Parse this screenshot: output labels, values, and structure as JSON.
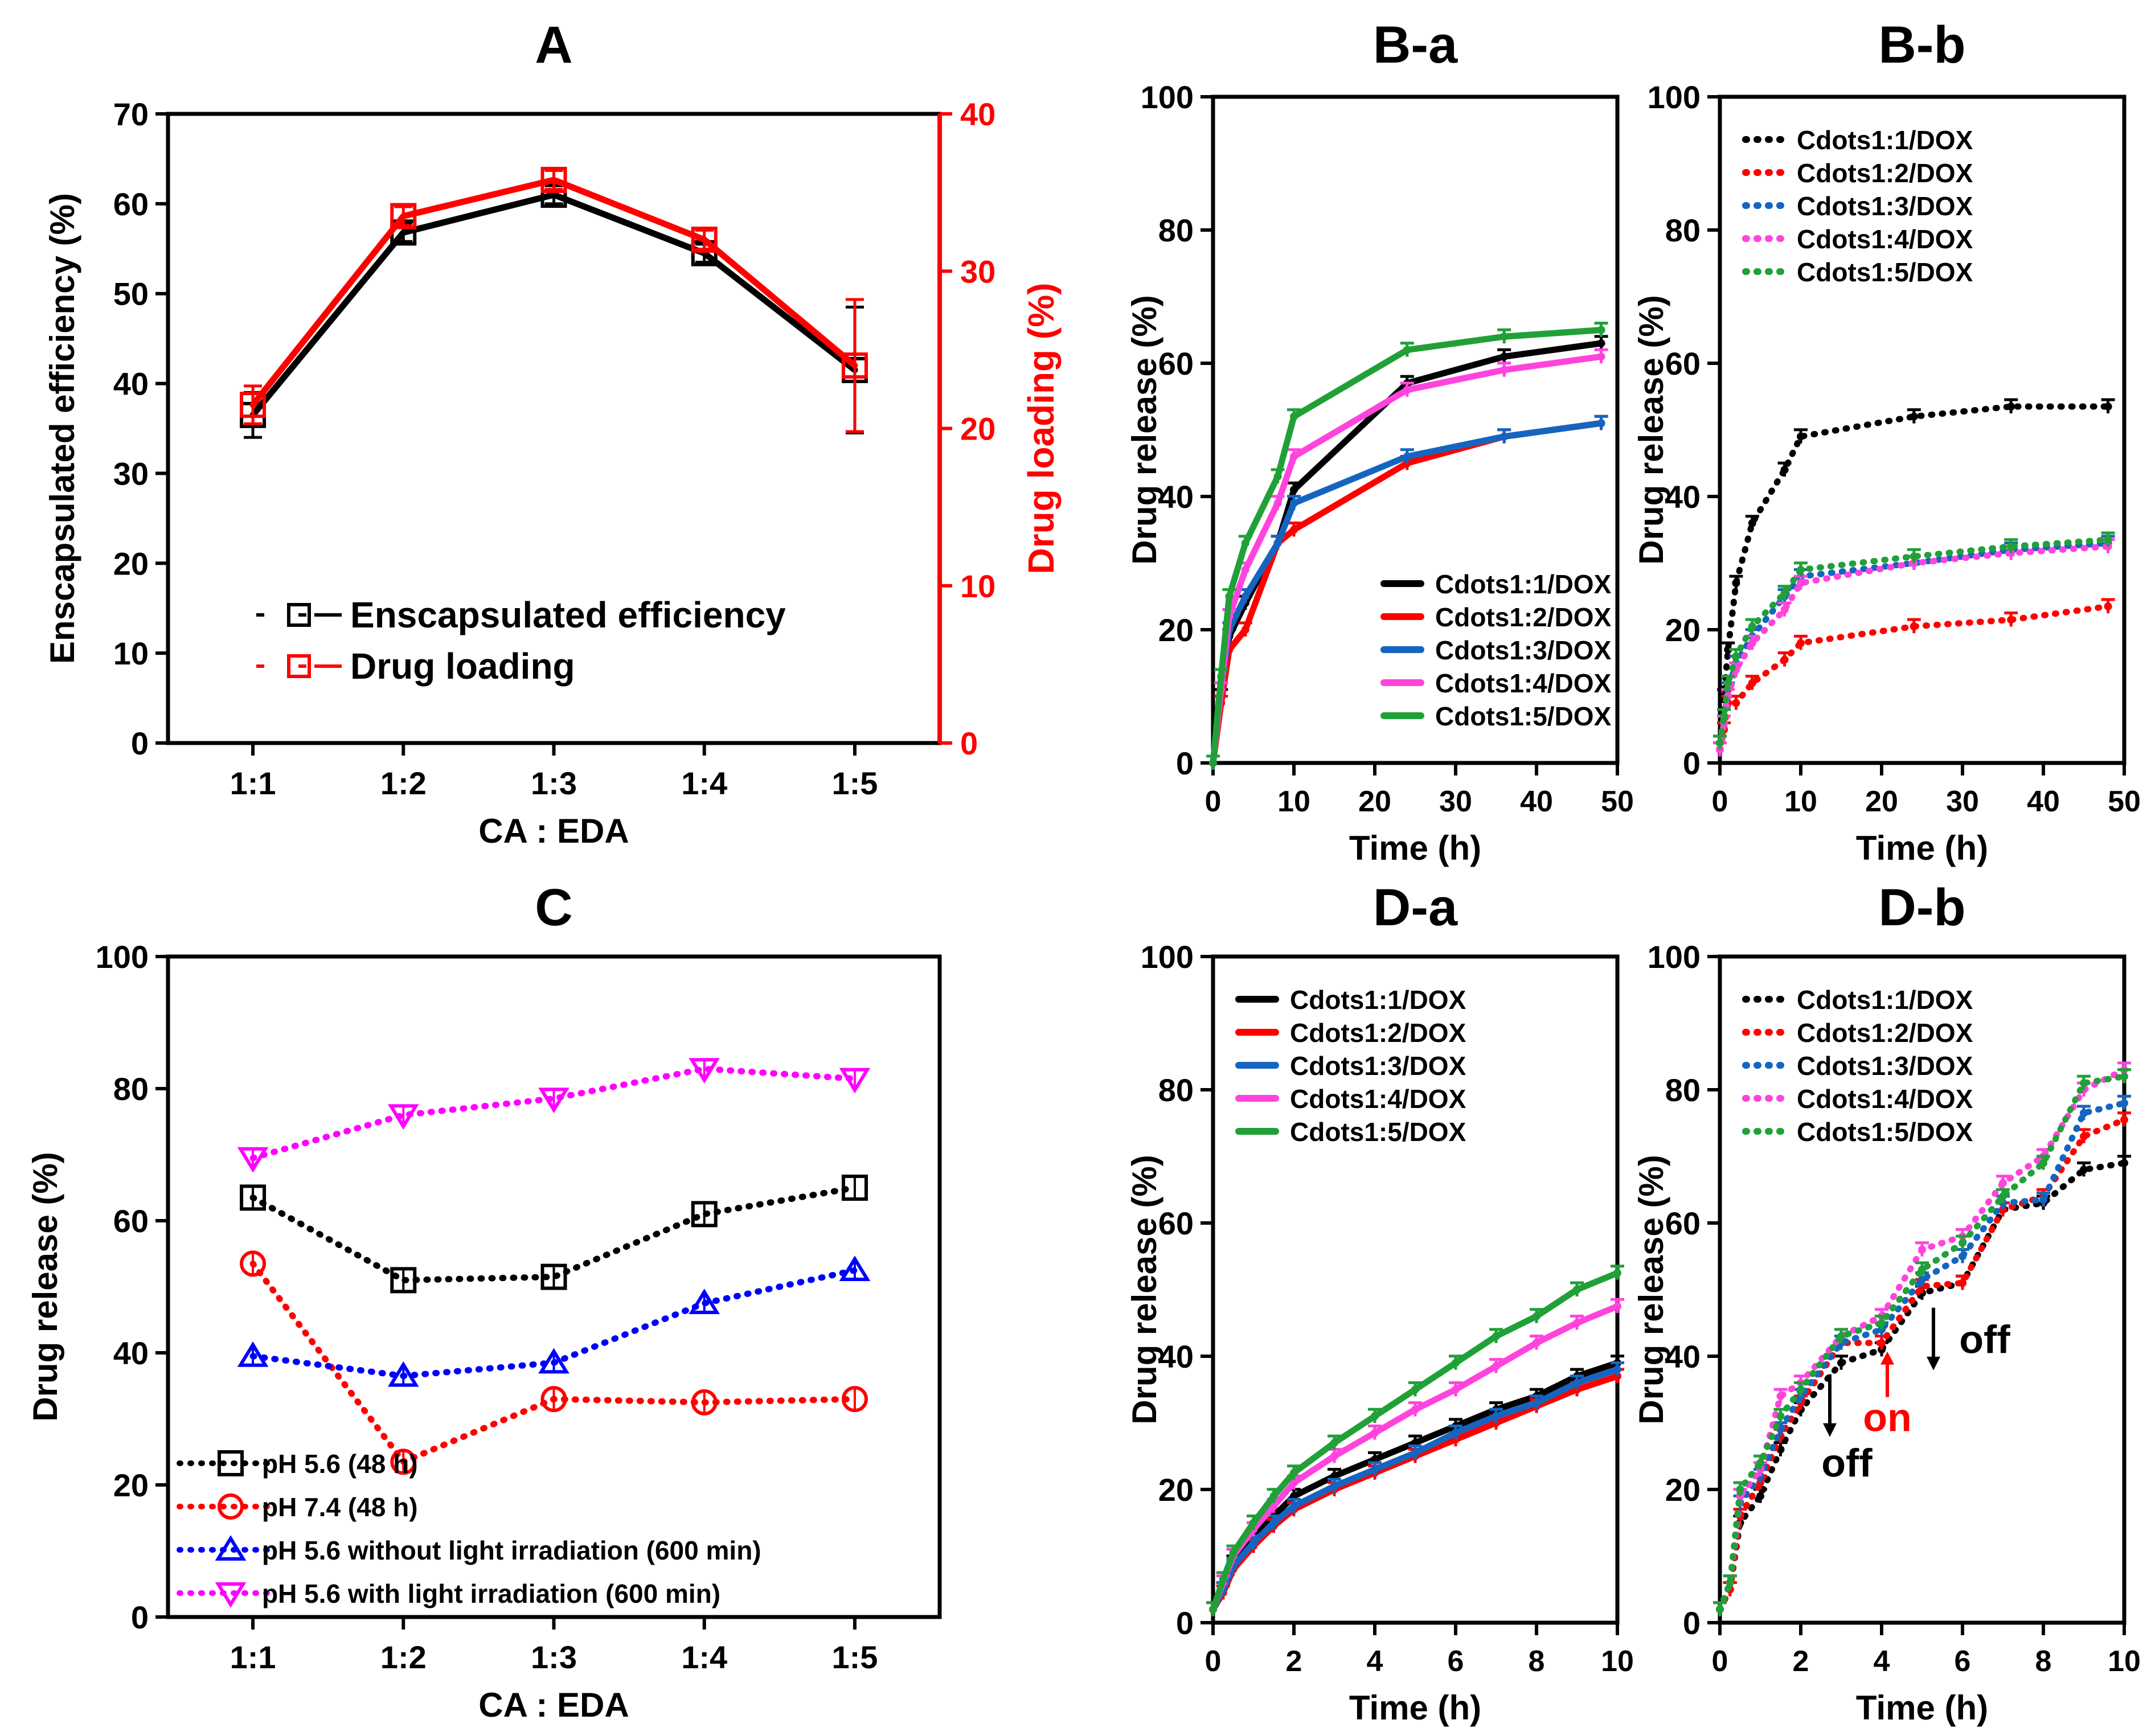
{
  "chart_data": [
    {
      "id": "A",
      "type": "line",
      "title": "A",
      "xlabel": "CA : EDA",
      "ylabel": "Enscapsulated efficiency (%)",
      "ylabel_right": "Drug loading (%)",
      "categories": [
        "1:1",
        "1:2",
        "1:3",
        "1:4",
        "1:5"
      ],
      "ylim": [
        0,
        70
      ],
      "yticks": [
        0,
        10,
        20,
        30,
        40,
        50,
        60,
        70
      ],
      "ylim_right": [
        0,
        40
      ],
      "yticks_right": [
        0,
        10,
        20,
        30,
        40
      ],
      "series": [
        {
          "name": "Enscapsulated efficiency",
          "color": "#000000",
          "marker": "square",
          "style": "solid",
          "axis": "left",
          "values": [
            36.5,
            56.8,
            61.0,
            54.5,
            41.5
          ],
          "errors": [
            2.5,
            1.0,
            1.0,
            1.0,
            7.0
          ]
        },
        {
          "name": "Drug loading",
          "color": "#ff0000",
          "marker": "square",
          "style": "solid",
          "axis": "right",
          "values": [
            21.5,
            33.5,
            35.8,
            32.0,
            24.0
          ],
          "errors": [
            1.2,
            0.6,
            0.6,
            0.6,
            4.2
          ]
        }
      ],
      "legend": [
        {
          "label": "Enscapsulated efficiency",
          "color": "#000000"
        },
        {
          "label": "Drug loading",
          "color": "#ff0000"
        }
      ]
    },
    {
      "id": "B-a",
      "type": "line",
      "title": "B-a",
      "xlabel": "Time (h)",
      "ylabel": "Drug release (%)",
      "xlim": [
        0,
        50
      ],
      "xticks": [
        0,
        10,
        20,
        30,
        40,
        50
      ],
      "ylim": [
        0,
        100
      ],
      "yticks": [
        0,
        20,
        40,
        60,
        80,
        100
      ],
      "x": [
        0,
        1,
        2,
        4,
        8,
        10,
        24,
        36,
        48
      ],
      "series": [
        {
          "name": "Cdots1:1/DOX",
          "color": "#000000",
          "style": "solid",
          "values": [
            0,
            10,
            19,
            24,
            33,
            41,
            57,
            61,
            63
          ]
        },
        {
          "name": "Cdots1:2/DOX",
          "color": "#ff0000",
          "style": "solid",
          "values": [
            0,
            9,
            17,
            20,
            33,
            35,
            45,
            49,
            51
          ]
        },
        {
          "name": "Cdots1:3/DOX",
          "color": "#1565c0",
          "style": "solid",
          "values": [
            0,
            11,
            20,
            25,
            33,
            39,
            46,
            49,
            51
          ]
        },
        {
          "name": "Cdots1:4/DOX",
          "color": "#ff44dd",
          "style": "solid",
          "values": [
            0,
            11,
            22,
            29,
            39,
            46,
            56,
            59,
            61
          ]
        },
        {
          "name": "Cdots1:5/DOX",
          "color": "#21a038",
          "style": "solid",
          "values": [
            0,
            13,
            25,
            33,
            43,
            52,
            62,
            64,
            65
          ]
        }
      ],
      "legend_position": "bottom-right"
    },
    {
      "id": "B-b",
      "type": "line",
      "title": "B-b",
      "xlabel": "Time (h)",
      "ylabel": "Drug release (%)",
      "xlim": [
        0,
        50
      ],
      "xticks": [
        0,
        10,
        20,
        30,
        40,
        50
      ],
      "ylim": [
        0,
        100
      ],
      "yticks": [
        0,
        20,
        40,
        60,
        80,
        100
      ],
      "x": [
        0,
        0.5,
        1,
        2,
        4,
        8,
        10,
        24,
        36,
        48
      ],
      "series": [
        {
          "name": "Cdots1:1/DOX",
          "color": "#000000",
          "style": "dotted",
          "values": [
            3,
            10,
            17,
            27,
            36,
            44,
            49,
            52,
            53.5,
            53.5
          ]
        },
        {
          "name": "Cdots1:2/DOX",
          "color": "#ff0000",
          "style": "dotted",
          "values": [
            2,
            5,
            9,
            9,
            12,
            15.5,
            18,
            20.5,
            21.5,
            23.5
          ]
        },
        {
          "name": "Cdots1:3/DOX",
          "color": "#1565c0",
          "style": "dotted",
          "values": [
            2,
            6,
            11,
            15,
            19,
            25,
            28,
            30,
            32,
            33
          ]
        },
        {
          "name": "Cdots1:4/DOX",
          "color": "#ff44dd",
          "style": "dotted",
          "values": [
            2,
            6,
            10,
            14,
            18,
            23,
            27,
            30,
            31.5,
            32.5
          ]
        },
        {
          "name": "Cdots1:5/DOX",
          "color": "#21a038",
          "style": "dotted",
          "values": [
            3,
            7,
            12,
            16,
            20.5,
            25.5,
            29,
            31,
            32.5,
            33.5
          ]
        }
      ],
      "legend_position": "top-left"
    },
    {
      "id": "C",
      "type": "line",
      "title": "C",
      "xlabel": "CA : EDA",
      "ylabel": "Drug release (%)",
      "categories": [
        "1:1",
        "1:2",
        "1:3",
        "1:4",
        "1:5"
      ],
      "ylim": [
        0,
        100
      ],
      "yticks": [
        0,
        20,
        40,
        60,
        80,
        100
      ],
      "series": [
        {
          "name": "pH 5.6 (48 h)",
          "color": "#000000",
          "marker": "square",
          "style": "dotted",
          "values": [
            63.5,
            51,
            51.5,
            61,
            65
          ]
        },
        {
          "name": "pH 7.4 (48 h)",
          "color": "#ff0000",
          "marker": "circle",
          "style": "dotted",
          "values": [
            53.5,
            23.5,
            33,
            32.5,
            33
          ]
        },
        {
          "name": "pH 5.6 without light irradiation (600 min)",
          "color": "#0000ff",
          "marker": "triangle-up",
          "style": "dotted",
          "values": [
            39.5,
            36.5,
            38.5,
            47.5,
            52.5
          ]
        },
        {
          "name": "pH 5.6 with light irradiation (600 min)",
          "color": "#ff00ff",
          "marker": "triangle-down",
          "style": "dotted",
          "values": [
            69.5,
            76,
            78.5,
            83,
            81.5
          ]
        }
      ],
      "legend_position": "bottom-left"
    },
    {
      "id": "D-a",
      "type": "line",
      "title": "D-a",
      "xlabel": "Time (h)",
      "ylabel": "Drug release (%)",
      "xlim": [
        0,
        10
      ],
      "xticks": [
        0,
        2,
        4,
        6,
        8,
        10
      ],
      "ylim": [
        0,
        100
      ],
      "yticks": [
        0,
        20,
        40,
        60,
        80,
        100
      ],
      "x": [
        0,
        0.25,
        0.5,
        1,
        1.5,
        2,
        3,
        4,
        5,
        6,
        7,
        8,
        9,
        10
      ],
      "series": [
        {
          "name": "Cdots1:1/DOX",
          "color": "#000000",
          "style": "solid",
          "values": [
            2,
            5,
            9,
            13,
            16,
            19,
            22,
            24.5,
            27,
            29.5,
            32,
            34,
            37,
            39
          ]
        },
        {
          "name": "Cdots1:2/DOX",
          "color": "#ff0000",
          "style": "solid",
          "values": [
            2,
            4.5,
            8,
            11.5,
            14.5,
            17,
            20,
            22.5,
            25,
            27.5,
            30,
            32.5,
            35,
            37
          ]
        },
        {
          "name": "Cdots1:3/DOX",
          "color": "#1565c0",
          "style": "solid",
          "values": [
            2,
            5,
            8.5,
            12,
            15,
            17.5,
            20.5,
            23,
            25.5,
            28.5,
            31,
            33,
            36,
            38
          ]
        },
        {
          "name": "Cdots1:4/DOX",
          "color": "#ff44dd",
          "style": "solid",
          "values": [
            2,
            6,
            10,
            14,
            17.5,
            21,
            25,
            28.5,
            32,
            35,
            38.5,
            42,
            45,
            47.5
          ]
        },
        {
          "name": "Cdots1:5/DOX",
          "color": "#21a038",
          "style": "solid",
          "values": [
            2,
            6.5,
            10.5,
            15,
            19,
            22.5,
            27,
            31,
            35,
            39,
            43,
            46,
            50,
            52.5
          ]
        }
      ],
      "legend_position": "top-left"
    },
    {
      "id": "D-b",
      "type": "line",
      "title": "D-b",
      "xlabel": "Time (h)",
      "ylabel": "Drug release (%)",
      "xlim": [
        0,
        10
      ],
      "xticks": [
        0,
        2,
        4,
        6,
        8,
        10
      ],
      "ylim": [
        0,
        100
      ],
      "yticks": [
        0,
        20,
        40,
        60,
        80,
        100
      ],
      "x": [
        0,
        0.25,
        0.5,
        1,
        1.5,
        2,
        3,
        4,
        5,
        6,
        7,
        8,
        9,
        10
      ],
      "series": [
        {
          "name": "Cdots1:1/DOX",
          "color": "#000000",
          "style": "dotted",
          "values": [
            2,
            5,
            15,
            19,
            26,
            32,
            39,
            41,
            49.5,
            51,
            62,
            63,
            68,
            69
          ]
        },
        {
          "name": "Cdots1:2/DOX",
          "color": "#ff0000",
          "style": "dotted",
          "values": [
            2,
            5,
            16,
            21,
            28,
            33,
            42,
            42,
            50.5,
            51,
            62,
            64,
            73,
            75.5
          ]
        },
        {
          "name": "Cdots1:3/DOX",
          "color": "#1565c0",
          "style": "dotted",
          "values": [
            2,
            6,
            18,
            22,
            29,
            34,
            42,
            44,
            51.5,
            55,
            63,
            63.5,
            76.5,
            78
          ]
        },
        {
          "name": "Cdots1:4/DOX",
          "color": "#ff44dd",
          "style": "dotted",
          "values": [
            2,
            6,
            19,
            23,
            34,
            36,
            43,
            46,
            56,
            58,
            66,
            70,
            80,
            83
          ]
        },
        {
          "name": "Cdots1:5/DOX",
          "color": "#21a038",
          "style": "dotted",
          "values": [
            2,
            6,
            20,
            24,
            31,
            35,
            43,
            45,
            53,
            57,
            64,
            69,
            81,
            82
          ]
        }
      ],
      "legend_position": "top-left",
      "annotations": [
        {
          "text": "off",
          "color": "#000000",
          "x": 3.0,
          "y": 39
        },
        {
          "text": "on",
          "color": "#ff0000",
          "x": 4.0,
          "y": 42
        },
        {
          "text": "off",
          "color": "#000000",
          "x": 5.0,
          "y": 49
        }
      ]
    }
  ]
}
